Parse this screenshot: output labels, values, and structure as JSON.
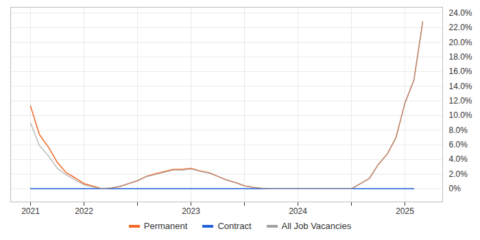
{
  "chart_data": {
    "type": "line",
    "categories": [
      "2021",
      null,
      null,
      null,
      null,
      null,
      "2022",
      null,
      null,
      null,
      null,
      null,
      null,
      null,
      null,
      null,
      null,
      null,
      "2023",
      null,
      null,
      null,
      null,
      null,
      null,
      null,
      null,
      null,
      null,
      null,
      "2024",
      null,
      null,
      null,
      null,
      null,
      null,
      null,
      null,
      null,
      null,
      null,
      "2025",
      null,
      null
    ],
    "series": [
      {
        "name": "Permanent",
        "color": "#f26522",
        "values": [
          11.3,
          7.4,
          5.7,
          3.6,
          2.2,
          1.5,
          0.7,
          0.35,
          0,
          0.1,
          0.3,
          0.7,
          1.1,
          1.7,
          2.05,
          2.35,
          2.65,
          2.65,
          2.8,
          2.45,
          2.2,
          1.7,
          1.2,
          0.85,
          0.4,
          0.2,
          0.05,
          0,
          0,
          0,
          0,
          0,
          0,
          0,
          0,
          0,
          0,
          0.7,
          1.4,
          3.3,
          4.7,
          7.0,
          11.7,
          14.8,
          22.8
        ]
      },
      {
        "name": "Contract",
        "color": "#1f5fd6",
        "values": [
          0,
          0,
          0,
          0,
          0,
          0,
          0,
          0,
          0,
          0,
          0,
          0,
          0,
          0,
          0,
          0,
          0,
          0,
          0,
          0,
          0,
          0,
          0,
          0,
          0,
          0,
          0,
          0,
          0,
          0,
          0,
          0,
          0,
          0,
          0,
          0,
          0,
          0,
          0,
          0,
          0,
          0,
          0,
          0,
          null
        ]
      },
      {
        "name": "All Job Vacancies",
        "color": "#a0a0a0",
        "values": [
          9.0,
          5.9,
          4.5,
          2.8,
          1.9,
          1.2,
          0.55,
          0.25,
          0,
          0.1,
          0.3,
          0.7,
          1.1,
          1.65,
          1.95,
          2.25,
          2.55,
          2.55,
          2.7,
          2.4,
          2.15,
          1.7,
          1.2,
          0.85,
          0.4,
          0.2,
          0.05,
          0,
          0,
          0,
          0,
          0,
          0,
          0,
          0,
          0,
          0,
          0.7,
          1.4,
          3.3,
          4.7,
          7.0,
          11.7,
          14.8,
          22.8
        ]
      }
    ],
    "ylim": [
      -1.8,
      24.8
    ],
    "yticks": [
      {
        "value": 0,
        "label": "0%"
      },
      {
        "value": 2,
        "label": "2.0%"
      },
      {
        "value": 4,
        "label": "4.0%"
      },
      {
        "value": 6,
        "label": "6.0%"
      },
      {
        "value": 8,
        "label": "8.0%"
      },
      {
        "value": 10,
        "label": "10.0%"
      },
      {
        "value": 12,
        "label": "12.0%"
      },
      {
        "value": 14,
        "label": "14.0%"
      },
      {
        "value": 16,
        "label": "16.0%"
      },
      {
        "value": 18,
        "label": "18.0%"
      },
      {
        "value": 20,
        "label": "20.0%"
      },
      {
        "value": 22,
        "label": "22.0%"
      },
      {
        "value": 24,
        "label": "24.0%"
      }
    ],
    "grid": true,
    "legend": "bottom"
  }
}
